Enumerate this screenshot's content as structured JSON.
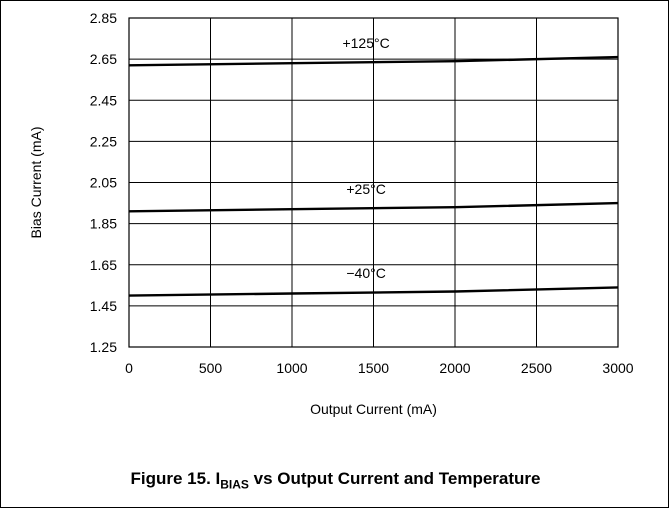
{
  "chart_data": {
    "type": "line",
    "title": "",
    "xlabel": "Output Current (mA)",
    "ylabel": "Bias Current (mA)",
    "xlim": [
      0,
      3000
    ],
    "ylim": [
      1.25,
      2.85
    ],
    "xticks": [
      0,
      500,
      1000,
      1500,
      2000,
      2500,
      3000
    ],
    "yticks": [
      1.25,
      1.45,
      1.65,
      1.85,
      2.05,
      2.25,
      2.45,
      2.65,
      2.85
    ],
    "xtick_labels": [
      "0",
      "500",
      "1000",
      "1500",
      "2000",
      "2500",
      "3000"
    ],
    "ytick_labels": [
      "1.25",
      "1.45",
      "1.65",
      "1.85",
      "2.05",
      "2.25",
      "2.45",
      "2.65",
      "2.85"
    ],
    "grid": true,
    "series": [
      {
        "name": "+125°C",
        "x": [
          0,
          1000,
          2000,
          3000
        ],
        "y": [
          2.62,
          2.63,
          2.64,
          2.66
        ]
      },
      {
        "name": "+25°C",
        "x": [
          0,
          1000,
          2000,
          3000
        ],
        "y": [
          1.91,
          1.92,
          1.93,
          1.95
        ]
      },
      {
        "name": "−40°C",
        "x": [
          0,
          1000,
          2000,
          3000
        ],
        "y": [
          1.5,
          1.51,
          1.52,
          1.54
        ]
      }
    ],
    "colors": {
      "line": "#000000",
      "grid": "#000000"
    }
  },
  "caption": {
    "prefix": "Figure 15. I",
    "subscript": "BIAS",
    "suffix": " vs Output Current and Temperature"
  }
}
